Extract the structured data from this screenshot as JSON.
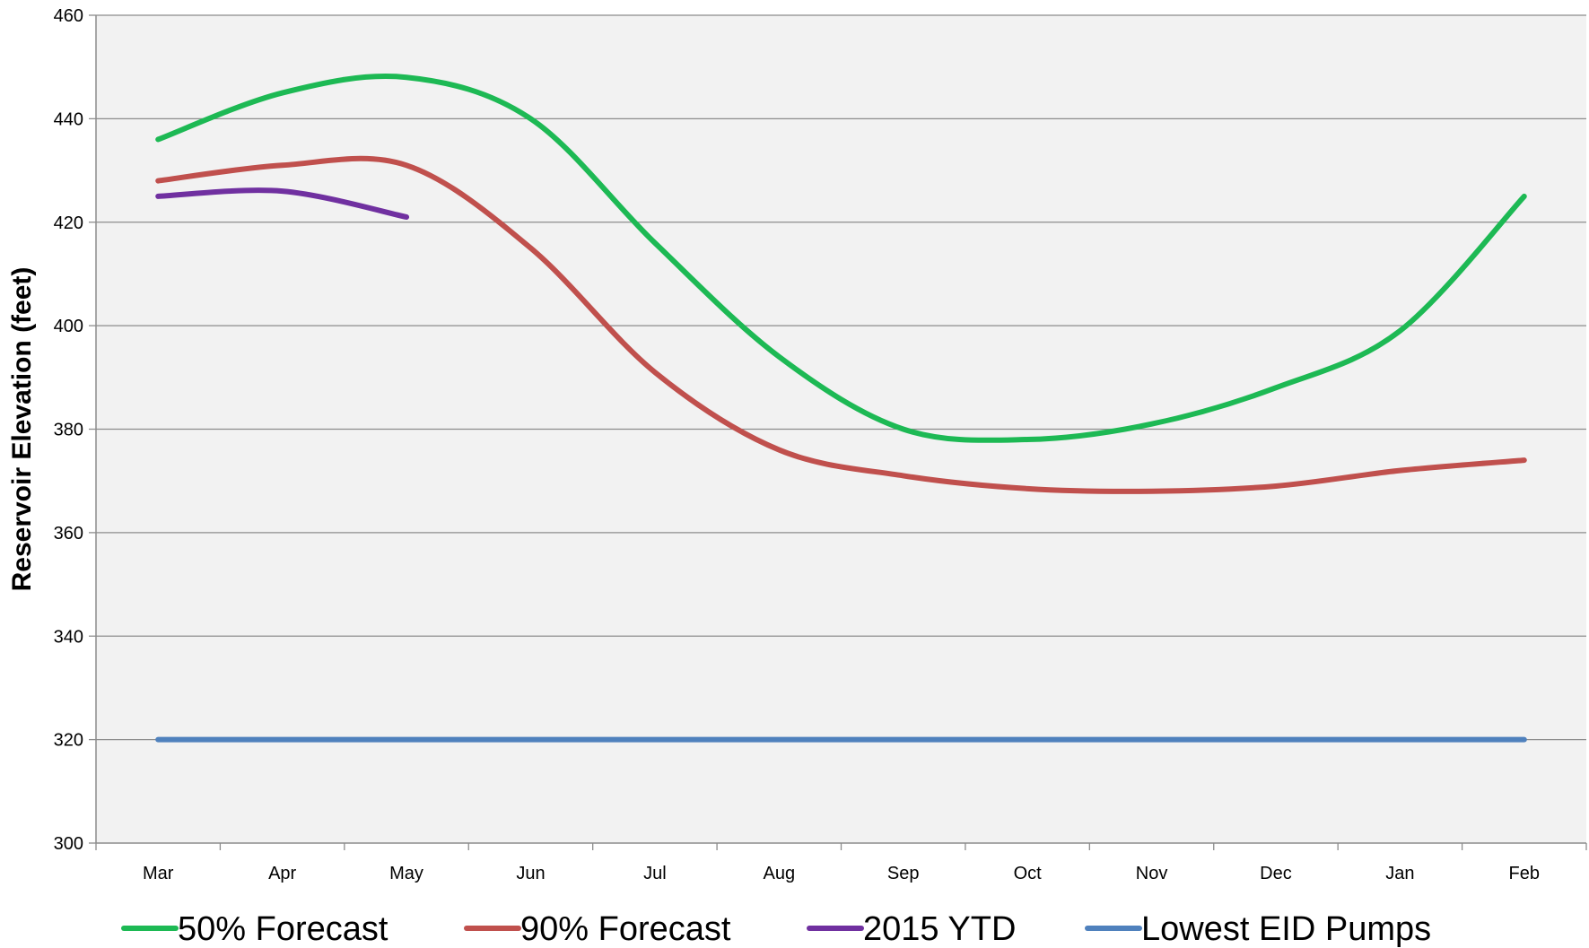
{
  "chart_data": {
    "type": "line",
    "title": "",
    "xlabel": "",
    "ylabel": "Reservoir Elevation (feet)",
    "categories": [
      "Mar",
      "Apr",
      "May",
      "Jun",
      "Jul",
      "Aug",
      "Sep",
      "Oct",
      "Nov",
      "Dec",
      "Jan",
      "Feb"
    ],
    "ylim": [
      300,
      460
    ],
    "yticks": [
      300,
      320,
      340,
      360,
      380,
      400,
      420,
      440,
      460
    ],
    "grid": true,
    "legend_position": "bottom",
    "plot_background": "#f2f2f2",
    "series": [
      {
        "name": "50% Forecast",
        "color": "#1db954",
        "values": [
          436,
          445,
          448,
          440,
          416,
          394,
          380,
          378,
          381,
          388,
          399,
          425
        ]
      },
      {
        "name": "90% Forecast",
        "color": "#c0504d",
        "values": [
          428,
          431,
          431,
          415,
          391,
          376,
          371,
          368.5,
          368,
          369,
          372,
          374
        ]
      },
      {
        "name": "2015 YTD",
        "color": "#7030a0",
        "values": [
          425,
          426,
          421,
          null,
          null,
          null,
          null,
          null,
          null,
          null,
          null,
          null
        ]
      },
      {
        "name": "Lowest EID Pumps",
        "color": "#4f81bd",
        "values": [
          320,
          320,
          320,
          320,
          320,
          320,
          320,
          320,
          320,
          320,
          320,
          320
        ]
      }
    ]
  }
}
